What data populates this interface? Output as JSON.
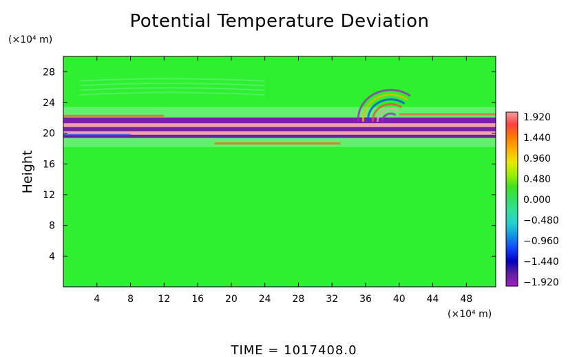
{
  "chart_data": {
    "type": "heatmap",
    "title": "Potential Temperature Deviation",
    "ylabel": "Height",
    "y_unit": "(×10⁴ m)",
    "x_unit": "(×10⁴ m)",
    "footer": "TIME  =  1017408.0",
    "xlim": [
      0,
      51.5
    ],
    "ylim": [
      0,
      30
    ],
    "x_ticks": [
      "4",
      "8",
      "12",
      "16",
      "20",
      "24",
      "28",
      "32",
      "36",
      "40",
      "44",
      "48"
    ],
    "y_ticks": [
      "4",
      "8",
      "12",
      "16",
      "20",
      "24",
      "28"
    ],
    "colorbar": {
      "labels": [
        "1.920",
        "1.440",
        "0.960",
        "0.480",
        "0.000",
        "−0.480",
        "−0.960",
        "−1.440",
        "−1.920"
      ],
      "colors_top_to_bottom": [
        "#f2a0a0",
        "#ff4040",
        "#ff7a00",
        "#ffb000",
        "#e8e800",
        "#a0f000",
        "#40e020",
        "#30e060",
        "#30e0a0",
        "#20d0d0",
        "#1090e0",
        "#1040ff",
        "#0000c0",
        "#6020a0",
        "#a020c0"
      ]
    },
    "background_color": "#2ef02e",
    "bands": [
      {
        "y": 21.6,
        "thickness": 0.9,
        "color": "#7a20a8"
      },
      {
        "y": 21.0,
        "thickness": 0.6,
        "color": "#f0a0b0"
      },
      {
        "y": 20.5,
        "thickness": 0.6,
        "color": "#7a20a8"
      },
      {
        "y": 20.0,
        "thickness": 0.5,
        "color": "#f0a0b0"
      },
      {
        "y": 19.6,
        "thickness": 0.4,
        "color": "#6020a0"
      }
    ]
  }
}
